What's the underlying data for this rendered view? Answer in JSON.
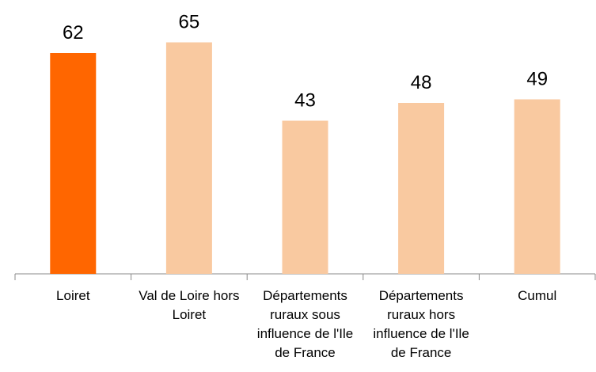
{
  "chart_data": {
    "type": "bar",
    "categories": [
      "Loiret",
      "Val de Loire hors Loiret",
      "Départements ruraux sous influence de l'Ile de France",
      "Départements ruraux hors influence de l'Ile de France",
      "Cumul"
    ],
    "values": [
      62,
      65,
      43,
      48,
      49
    ],
    "colors": [
      "#ff6600",
      "#f9c9a0",
      "#f9c9a0",
      "#f9c9a0",
      "#f9c9a0"
    ],
    "ylim": [
      0,
      70
    ]
  }
}
